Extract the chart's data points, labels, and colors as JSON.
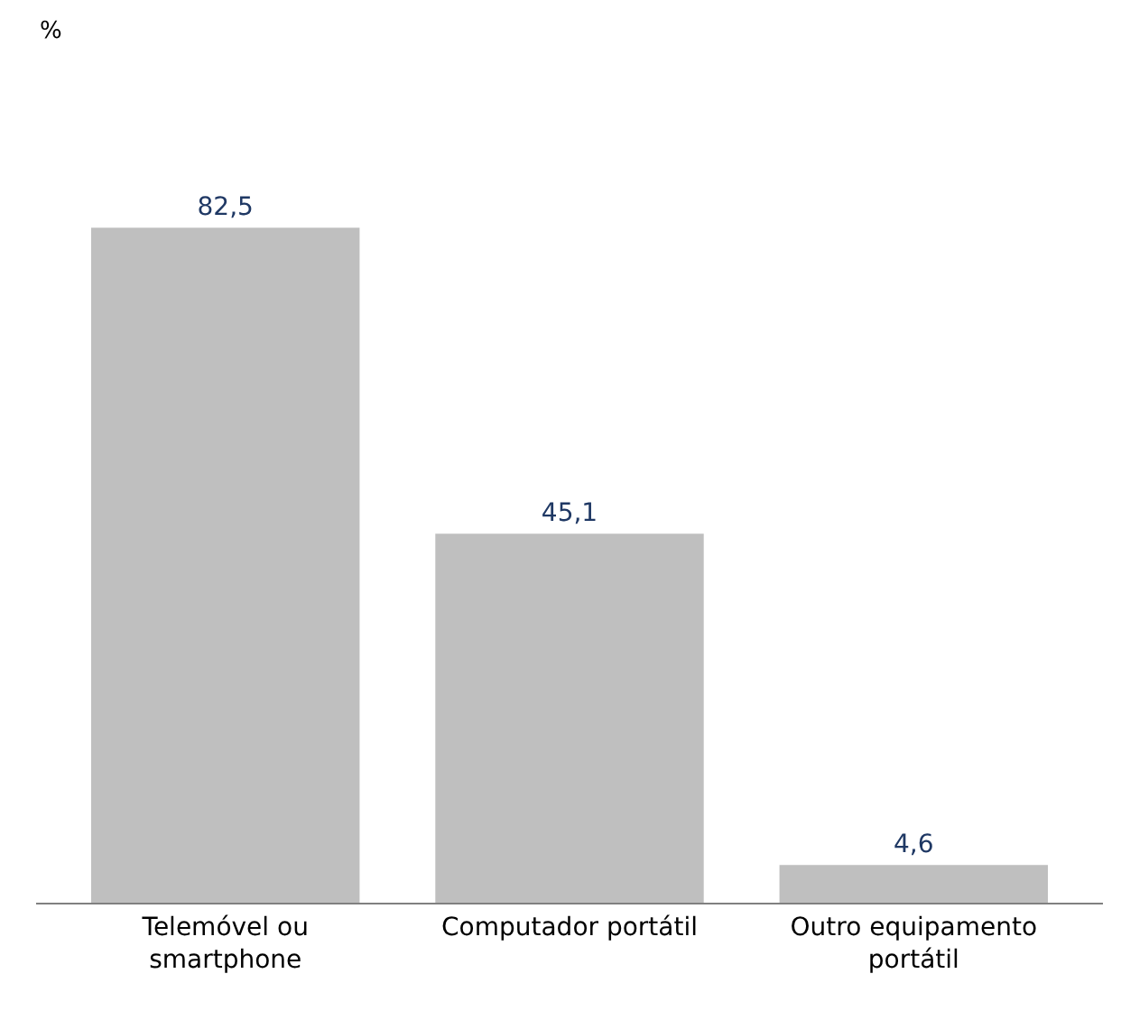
{
  "chart_data": {
    "type": "bar",
    "annotations": [
      "%"
    ],
    "categories": [
      "Telemóvel ou smartphone",
      "Computador portátil",
      "Outro equipamento portátil"
    ],
    "values": [
      82.5,
      45.1,
      4.6
    ],
    "color": "#bfbfbf",
    "value_labels": [
      "82,5",
      "45,1",
      "4,6"
    ],
    "legend": false
  }
}
